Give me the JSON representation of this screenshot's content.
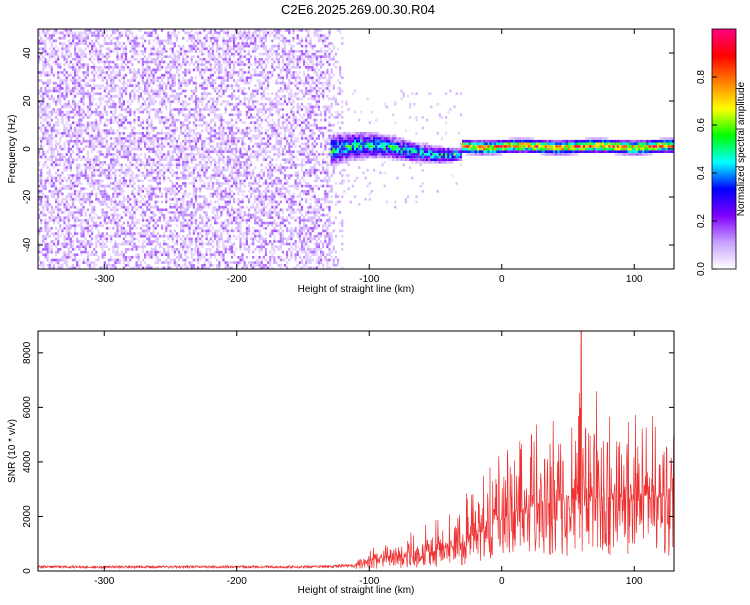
{
  "title": "C2E6.2025.269.00.30.R04",
  "chart_data": [
    {
      "type": "heatmap",
      "title": "C2E6.2025.269.00.30.R04",
      "xlabel": "Height of straight line (km)",
      "ylabel": "Frequency (Hz)",
      "xlim": [
        -350,
        130
      ],
      "ylim": [
        -50,
        50
      ],
      "xticks": [
        -300,
        -200,
        -100,
        0,
        100
      ],
      "yticks": [
        -40,
        -20,
        0,
        20,
        40
      ],
      "colorbar": {
        "label": "Normalized spectral amplitude",
        "range": [
          0,
          1
        ],
        "ticks": [
          "0.0",
          "0.2",
          "0.4",
          "0.6",
          "0.8"
        ],
        "colors": [
          "#ffffff",
          "#c8a0ff",
          "#8000ff",
          "#0000ff",
          "#00ffff",
          "#00ff00",
          "#ffff00",
          "#ff8000",
          "#ff0000",
          "#ff0080"
        ]
      },
      "regions": [
        {
          "name": "noise",
          "x_range": [
            -350,
            -130
          ],
          "freq_range": [
            -50,
            50
          ],
          "amplitude": 0.05
        },
        {
          "name": "transition",
          "x_range": [
            -130,
            -30
          ],
          "freq_range": [
            -10,
            10
          ],
          "amplitude": 0.35
        },
        {
          "name": "signal",
          "x_range": [
            -30,
            130
          ],
          "freq_center": 1.5,
          "amplitude": 0.9
        }
      ]
    },
    {
      "type": "line",
      "xlabel": "Height of straight line (km)",
      "ylabel": "SNR (10 * v/v)",
      "xlim": [
        -350,
        130
      ],
      "ylim": [
        0,
        8800
      ],
      "xticks": [
        -300,
        -200,
        -100,
        0,
        100
      ],
      "yticks": [
        0,
        2000,
        4000,
        6000,
        8000
      ],
      "color": "#ee3030",
      "envelope": {
        "x": [
          -350,
          -250,
          -150,
          -110,
          -100,
          -80,
          -60,
          -40,
          -20,
          0,
          20,
          40,
          60,
          80,
          100,
          120,
          130
        ],
        "median": [
          150,
          150,
          150,
          200,
          400,
          500,
          650,
          800,
          1300,
          1900,
          2300,
          2500,
          2700,
          2600,
          2600,
          2700,
          2800
        ],
        "peak": [
          300,
          320,
          300,
          450,
          900,
          1100,
          1700,
          2400,
          3600,
          4400,
          5300,
          5800,
          8800,
          6800,
          6100,
          5600,
          5400
        ]
      }
    }
  ]
}
